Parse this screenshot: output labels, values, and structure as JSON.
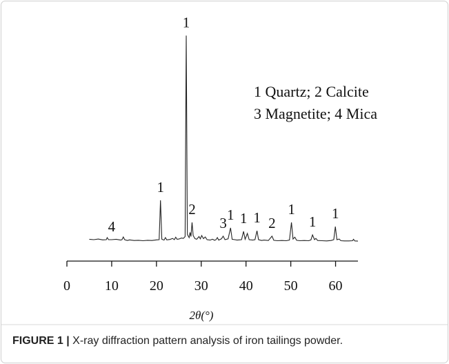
{
  "chart_data": {
    "type": "line",
    "color": "#222222",
    "xlabel": "2θ(°)",
    "legend_lines": [
      "1 Quartz; 2 Calcite",
      "3 Magnetite; 4 Mica"
    ],
    "xlim": [
      0,
      65
    ],
    "xticks": [
      0,
      10,
      20,
      30,
      40,
      50,
      60
    ],
    "ylim": [
      0,
      100
    ],
    "x": [
      5,
      6,
      7,
      8,
      8.8,
      9,
      9.3,
      10,
      11,
      12,
      12.3,
      12.6,
      12.9,
      13.5,
      14,
      15,
      16,
      17,
      18,
      19,
      20,
      20.6,
      20.9,
      21.2,
      21.7,
      22,
      22.3,
      23,
      23.6,
      24,
      24.3,
      24.6,
      25,
      25.6,
      26,
      26.4,
      26.65,
      26.9,
      27.3,
      27.5,
      27.7,
      27.95,
      28.2,
      28.6,
      29,
      29.5,
      29.8,
      30.1,
      30.5,
      30.9,
      31.3,
      32,
      32.5,
      33,
      33.3,
      33.6,
      33.9,
      34.5,
      34.9,
      35.3,
      36,
      36.55,
      36.9,
      37.5,
      38,
      38.5,
      39,
      39.45,
      39.8,
      40.3,
      40.7,
      41.5,
      42,
      42.45,
      42.8,
      43.5,
      44,
      45,
      45.8,
      46.2,
      47,
      48,
      49,
      49.7,
      50.15,
      50.5,
      50.9,
      51.3,
      52,
      53,
      54,
      54.5,
      54.85,
      55.3,
      55.6,
      56,
      57,
      58,
      59,
      59.6,
      59.95,
      60.3,
      60.8,
      61.2,
      62,
      63,
      63.8,
      64,
      64.3,
      65
    ],
    "values": [
      1.2,
      1.0,
      1.3,
      0.9,
      1.0,
      2.0,
      1.0,
      1.0,
      1.2,
      0.8,
      1.0,
      2.3,
      1.0,
      0.6,
      0.9,
      0.6,
      0.7,
      0.5,
      0.7,
      0.6,
      0.9,
      1.0,
      20,
      1.2,
      0.8,
      2.0,
      0.9,
      1.1,
      1.6,
      1.0,
      2.2,
      1.2,
      1.3,
      1.8,
      1.6,
      2.5,
      99.5,
      3.5,
      2.0,
      4.5,
      2.5,
      9.3,
      3.0,
      1.5,
      1.2,
      2.5,
      1.4,
      3.0,
      1.5,
      2.3,
      1.0,
      0.8,
      1.2,
      0.7,
      1.0,
      2.0,
      0.8,
      1.4,
      2.7,
      1.0,
      1.4,
      6.7,
      1.2,
      1.0,
      0.8,
      0.9,
      1.0,
      5.0,
      1.2,
      4.0,
      1.0,
      0.8,
      1.0,
      5.3,
      1.0,
      0.6,
      0.8,
      0.6,
      2.7,
      0.7,
      0.5,
      0.6,
      0.5,
      0.8,
      9.3,
      1.3,
      2.2,
      0.7,
      0.5,
      0.6,
      0.5,
      0.9,
      3.3,
      1.0,
      1.6,
      0.6,
      0.5,
      0.4,
      0.6,
      1.0,
      7.3,
      1.0,
      1.3,
      0.5,
      0.4,
      0.4,
      0.5,
      1.2,
      0.4,
      0.3
    ],
    "annotations": [
      {
        "text": "4",
        "x": 10
      },
      {
        "text": "1",
        "x": 20.9
      },
      {
        "text": "1",
        "x": 26.65
      },
      {
        "text": "2",
        "x": 27.95
      },
      {
        "text": "3",
        "x": 34.9
      },
      {
        "text": "1",
        "x": 36.55
      },
      {
        "text": "1",
        "x": 39.45
      },
      {
        "text": "1",
        "x": 42.45
      },
      {
        "text": "2",
        "x": 45.8
      },
      {
        "text": "1",
        "x": 50.15
      },
      {
        "text": "1",
        "x": 54.85
      },
      {
        "text": "1",
        "x": 59.95
      }
    ]
  },
  "caption": {
    "label": "FIGURE 1 |",
    "text": " X-ray diffraction pattern analysis of iron tailings powder."
  }
}
